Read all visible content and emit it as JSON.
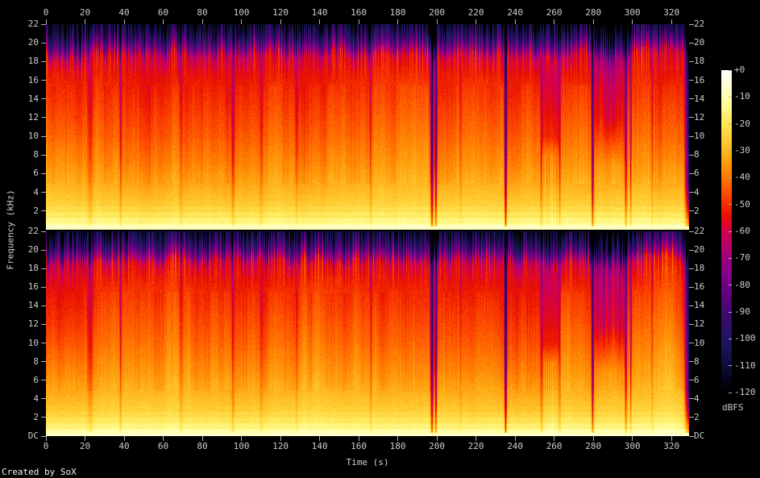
{
  "credit": "Created by SoX",
  "colors": {
    "background": "#000000",
    "axis_text": "#cccccc",
    "tick_mark": "#b0b0b0",
    "credit_text": "#f0f0f0"
  },
  "chart_data": {
    "type": "heatmap",
    "subtype": "stereo-audio-spectrogram",
    "title": "",
    "xlabel": "Time (s)",
    "ylabel": "Frequency (kHz)",
    "duration_s": 329,
    "x_range_s": [
      0,
      329
    ],
    "x_ticks_s": [
      0,
      20,
      40,
      60,
      80,
      100,
      120,
      140,
      160,
      180,
      200,
      220,
      240,
      260,
      280,
      300,
      320
    ],
    "y_range_khz": [
      0,
      22
    ],
    "y_ticks_khz": [
      22,
      20,
      18,
      16,
      14,
      12,
      10,
      8,
      6,
      4,
      2
    ],
    "y_dc_label": "DC",
    "channels": 2,
    "grid": false,
    "legend_position": "right-colorbar",
    "colorbar": {
      "unit": "dBFS",
      "range_db": [
        0,
        -120
      ],
      "ticks": [
        "+0",
        "-10",
        "-20",
        "-30",
        "-40",
        "-50",
        "-60",
        "-70",
        "-80",
        "-90",
        "-100",
        "-110",
        "-120"
      ]
    },
    "palette_stops_db_hex": [
      [
        0,
        "#ffffff"
      ],
      [
        -6,
        "#ffffd0"
      ],
      [
        -12,
        "#ffff9e"
      ],
      [
        -20,
        "#ffe654"
      ],
      [
        -28,
        "#ffc328"
      ],
      [
        -35,
        "#ff9a0a"
      ],
      [
        -42,
        "#ff6a00"
      ],
      [
        -48,
        "#fa3c00"
      ],
      [
        -54,
        "#e81000"
      ],
      [
        -60,
        "#d4004f"
      ],
      [
        -68,
        "#aa0078"
      ],
      [
        -76,
        "#83008a"
      ],
      [
        -84,
        "#60007f"
      ],
      [
        -92,
        "#3d0b6e"
      ],
      [
        -100,
        "#1f1663"
      ],
      [
        -108,
        "#101048"
      ],
      [
        -114,
        "#070723"
      ],
      [
        -120,
        "#000000"
      ]
    ],
    "spectral_profile_khz_db": [
      [
        0,
        -6
      ],
      [
        0.4,
        -10
      ],
      [
        1,
        -16
      ],
      [
        2,
        -22
      ],
      [
        3,
        -27
      ],
      [
        5,
        -33
      ],
      [
        7,
        -38
      ],
      [
        10,
        -44
      ],
      [
        14,
        -50
      ],
      [
        17,
        -54
      ],
      [
        18.6,
        -58
      ],
      [
        19.4,
        -74
      ],
      [
        20.4,
        -92
      ],
      [
        21.4,
        -104
      ],
      [
        22,
        -112
      ]
    ],
    "quiet_gaps_s": [
      [
        22.5,
        2.0,
        10
      ],
      [
        38,
        0.8,
        14
      ],
      [
        69,
        1.5,
        8
      ],
      [
        95.5,
        1.0,
        14
      ],
      [
        110,
        1.2,
        8
      ],
      [
        128,
        0.8,
        7
      ],
      [
        166,
        0.8,
        10
      ],
      [
        197.3,
        1.0,
        55
      ],
      [
        199.3,
        0.8,
        45
      ],
      [
        212,
        0.8,
        7
      ],
      [
        235,
        0.8,
        62
      ],
      [
        253.3,
        0.8,
        18
      ],
      [
        262.6,
        0.8,
        16
      ],
      [
        279.5,
        0.8,
        45
      ],
      [
        296.5,
        0.8,
        30
      ],
      [
        299,
        0.5,
        22
      ],
      [
        310,
        0.6,
        10
      ]
    ],
    "sections": [
      {
        "t0": 0,
        "t1": 20,
        "cap_shift_khz": -0.45,
        "high_drop_db": 2
      },
      {
        "t0": 253,
        "t1": 263,
        "mid_drop_db": 8,
        "texture_db": 4,
        "cap_shift_khz": -0.4
      },
      {
        "t0": 280,
        "t1": 297,
        "high_drop_db": 13,
        "cap_shift_khz": -0.5
      },
      {
        "t0": 299,
        "t1": 325.5,
        "gain_db": 2.5,
        "cap_shift_khz": 0.35
      },
      {
        "t0": 326,
        "t1": 329.3,
        "fade_db": 75
      }
    ]
  }
}
